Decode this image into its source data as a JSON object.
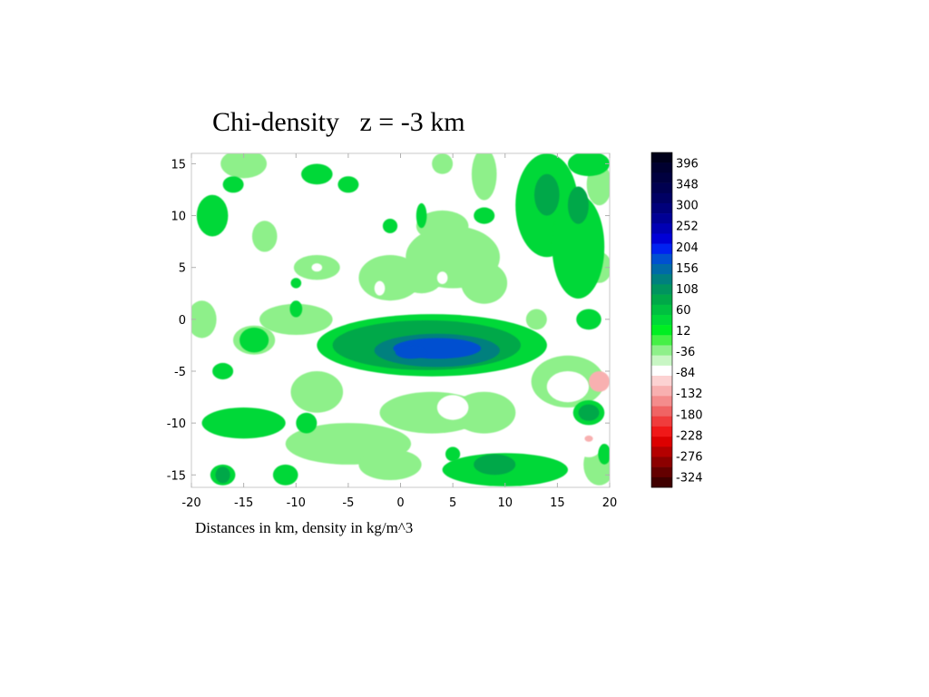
{
  "chart_data": {
    "type": "heatmap",
    "title": "Chi-density   z = -3 km",
    "caption": "Distances in km, density in kg/m^3",
    "xlabel": "",
    "ylabel": "",
    "xlim": [
      -20,
      20
    ],
    "ylim": [
      -16.2,
      16
    ],
    "x_ticks": [
      "-20",
      "-15",
      "-10",
      "-5",
      "0",
      "5",
      "10",
      "15",
      "20"
    ],
    "y_ticks": [
      "15",
      "10",
      "5",
      "0",
      "-5",
      "-10",
      "-15"
    ],
    "x_tick_values": [
      -20,
      -15,
      -10,
      -5,
      0,
      5,
      10,
      15,
      20
    ],
    "y_tick_values": [
      15,
      10,
      5,
      0,
      -5,
      -10,
      -15
    ],
    "colorbar": {
      "labels": [
        "396",
        "348",
        "300",
        "252",
        "204",
        "156",
        "108",
        "60",
        "12",
        "-36",
        "-84",
        "-132",
        "-180",
        "-228",
        "-276",
        "-324"
      ],
      "label_values": [
        396,
        348,
        300,
        252,
        204,
        156,
        108,
        60,
        12,
        -36,
        -84,
        -132,
        -180,
        -228,
        -276,
        -324
      ],
      "levels": [
        420,
        396,
        372,
        348,
        324,
        300,
        276,
        252,
        228,
        204,
        180,
        156,
        132,
        108,
        84,
        60,
        36,
        12,
        -12,
        -36,
        -60,
        -84,
        -108,
        -132,
        -156,
        -180,
        -204,
        -228,
        -252,
        -276,
        -300,
        -324,
        -348
      ],
      "colors": [
        "#00001a",
        "#000030",
        "#00003f",
        "#000050",
        "#000063",
        "#00007a",
        "#000095",
        "#0000b4",
        "#0000d6",
        "#0022f0",
        "#0050d0",
        "#006aa6",
        "#00807e",
        "#00945e",
        "#00a848",
        "#00c040",
        "#00d838",
        "#00ee22",
        "#46f046",
        "#8ef08a",
        "#c8f6c4",
        "#ffffff",
        "#fcd2d2",
        "#f8b0b0",
        "#f48c8c",
        "#f06464",
        "#f03c3c",
        "#f01818",
        "#dc0000",
        "#b40000",
        "#8c0000",
        "#640000",
        "#400000"
      ]
    },
    "regions": [
      {
        "value": -36,
        "x": -15,
        "y": 15,
        "rx": 2.2,
        "ry": 1.4
      },
      {
        "value": -36,
        "x": -13,
        "y": 8,
        "rx": 1.2,
        "ry": 1.5
      },
      {
        "value": -36,
        "x": -8,
        "y": 5,
        "rx": 2.2,
        "ry": 1.2
      },
      {
        "value": -36,
        "x": -10,
        "y": 0,
        "rx": 3.5,
        "ry": 1.5
      },
      {
        "value": -36,
        "x": -14,
        "y": -2,
        "rx": 2,
        "ry": 1.4
      },
      {
        "value": -36,
        "x": -19,
        "y": 0,
        "rx": 1.4,
        "ry": 1.8
      },
      {
        "value": -36,
        "x": -1,
        "y": 4,
        "rx": 3,
        "ry": 2.2
      },
      {
        "value": -36,
        "x": 5,
        "y": 6,
        "rx": 4.5,
        "ry": 3
      },
      {
        "value": -36,
        "x": 2,
        "y": 4,
        "rx": 2,
        "ry": 1.5
      },
      {
        "value": -36,
        "x": 8,
        "y": 3.5,
        "rx": 2.2,
        "ry": 2
      },
      {
        "value": -36,
        "x": 4,
        "y": 9,
        "rx": 2.5,
        "ry": 1.5
      },
      {
        "value": -36,
        "x": -8,
        "y": -7,
        "rx": 2.5,
        "ry": 2
      },
      {
        "value": -36,
        "x": -5,
        "y": -12,
        "rx": 6,
        "ry": 2
      },
      {
        "value": -36,
        "x": 3,
        "y": -9,
        "rx": 5,
        "ry": 2
      },
      {
        "value": -36,
        "x": 8,
        "y": -9,
        "rx": 3,
        "ry": 2
      },
      {
        "value": -36,
        "x": -1,
        "y": -14,
        "rx": 3,
        "ry": 1.5
      },
      {
        "value": -36,
        "x": 4,
        "y": 15,
        "rx": 1,
        "ry": 1
      },
      {
        "value": -36,
        "x": 8,
        "y": 14,
        "rx": 1.2,
        "ry": 2.5
      },
      {
        "value": -36,
        "x": 13,
        "y": 0,
        "rx": 1,
        "ry": 1
      },
      {
        "value": -36,
        "x": 16,
        "y": -6,
        "rx": 3.5,
        "ry": 2.5
      },
      {
        "value": -36,
        "x": 19,
        "y": -14,
        "rx": 1.5,
        "ry": 2
      },
      {
        "value": -36,
        "x": 19,
        "y": 5,
        "rx": 1.2,
        "ry": 1.5
      },
      {
        "value": -36,
        "x": 19,
        "y": 13,
        "rx": 1.2,
        "ry": 2
      },
      {
        "value": -84,
        "x": -8,
        "y": 5,
        "rx": 0.5,
        "ry": 0.4
      },
      {
        "value": -84,
        "x": -2,
        "y": 3,
        "rx": 0.5,
        "ry": 0.7
      },
      {
        "value": -84,
        "x": 4,
        "y": 4,
        "rx": 0.5,
        "ry": 0.6
      },
      {
        "value": -84,
        "x": 5,
        "y": -8.5,
        "rx": 1.5,
        "ry": 1.2
      },
      {
        "value": -84,
        "x": 16,
        "y": -6.5,
        "rx": 2,
        "ry": 1.5
      },
      {
        "value": -84,
        "x": 18,
        "y": -12,
        "rx": 1.3,
        "ry": 1.3
      },
      {
        "value": -132,
        "x": 19,
        "y": -6,
        "rx": 1,
        "ry": 1
      },
      {
        "value": -132,
        "x": 18,
        "y": -11.5,
        "rx": 0.4,
        "ry": 0.3
      },
      {
        "value": 12,
        "x": -18,
        "y": 10,
        "rx": 1.5,
        "ry": 2
      },
      {
        "value": 12,
        "x": -16,
        "y": 13,
        "rx": 1,
        "ry": 0.8
      },
      {
        "value": 12,
        "x": -8,
        "y": 14,
        "rx": 1.5,
        "ry": 1
      },
      {
        "value": 12,
        "x": -5,
        "y": 13,
        "rx": 1,
        "ry": 0.8
      },
      {
        "value": 12,
        "x": 2,
        "y": 10,
        "rx": 0.5,
        "ry": 1.2
      },
      {
        "value": 12,
        "x": 8,
        "y": 10,
        "rx": 1,
        "ry": 0.8
      },
      {
        "value": 12,
        "x": -1,
        "y": 9,
        "rx": 0.7,
        "ry": 0.7
      },
      {
        "value": 12,
        "x": 14,
        "y": 11,
        "rx": 3,
        "ry": 5
      },
      {
        "value": 12,
        "x": 17,
        "y": 7,
        "rx": 2.5,
        "ry": 5
      },
      {
        "value": 12,
        "x": 18,
        "y": 15,
        "rx": 2,
        "ry": 1.2
      },
      {
        "value": 12,
        "x": 3,
        "y": -2.5,
        "rx": 11,
        "ry": 3
      },
      {
        "value": 12,
        "x": -15,
        "y": -10,
        "rx": 4,
        "ry": 1.5
      },
      {
        "value": 12,
        "x": -14,
        "y": -2,
        "rx": 1.4,
        "ry": 1.2
      },
      {
        "value": 12,
        "x": -9,
        "y": -10,
        "rx": 1,
        "ry": 1
      },
      {
        "value": 12,
        "x": -17,
        "y": -5,
        "rx": 1,
        "ry": 0.8
      },
      {
        "value": 12,
        "x": -17,
        "y": -15,
        "rx": 1.2,
        "ry": 1
      },
      {
        "value": 12,
        "x": -11,
        "y": -15,
        "rx": 1.2,
        "ry": 1
      },
      {
        "value": 12,
        "x": 10,
        "y": -14.5,
        "rx": 6,
        "ry": 1.6
      },
      {
        "value": 12,
        "x": 18,
        "y": -9,
        "rx": 1.5,
        "ry": 1.2
      },
      {
        "value": 12,
        "x": 19.5,
        "y": -13,
        "rx": 0.6,
        "ry": 1
      },
      {
        "value": 12,
        "x": 18,
        "y": 0,
        "rx": 1.2,
        "ry": 1
      },
      {
        "value": 12,
        "x": -10,
        "y": 1,
        "rx": 0.6,
        "ry": 0.8
      },
      {
        "value": 12,
        "x": -10,
        "y": 3.5,
        "rx": 0.5,
        "ry": 0.5
      },
      {
        "value": 12,
        "x": 5,
        "y": -13,
        "rx": 0.7,
        "ry": 0.7
      },
      {
        "value": 60,
        "x": 2.5,
        "y": -2.5,
        "rx": 9,
        "ry": 2.4
      },
      {
        "value": 60,
        "x": 14,
        "y": 12,
        "rx": 1.2,
        "ry": 2
      },
      {
        "value": 60,
        "x": 17,
        "y": 11,
        "rx": 1,
        "ry": 1.8
      },
      {
        "value": 60,
        "x": -17,
        "y": -15,
        "rx": 0.7,
        "ry": 0.8
      },
      {
        "value": 60,
        "x": 9,
        "y": -14,
        "rx": 2,
        "ry": 1
      },
      {
        "value": 60,
        "x": 18,
        "y": -9,
        "rx": 1,
        "ry": 0.8
      },
      {
        "value": 108,
        "x": 3.5,
        "y": -3,
        "rx": 6,
        "ry": 1.6
      },
      {
        "value": 156,
        "x": 3.5,
        "y": -2.8,
        "rx": 4.2,
        "ry": 1
      },
      {
        "value": 156,
        "x": 1,
        "y": -3.2,
        "rx": 1.5,
        "ry": 0.6
      }
    ]
  }
}
